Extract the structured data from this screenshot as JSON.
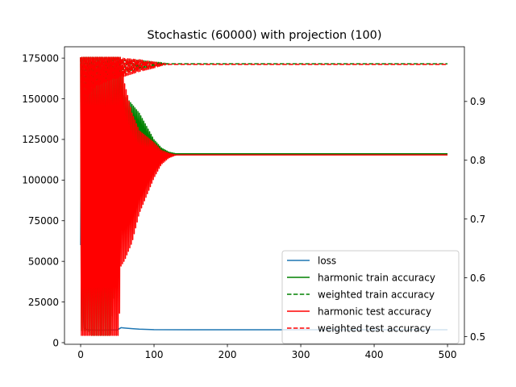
{
  "chart_data": {
    "type": "line",
    "title": "Stochastic (60000) with projection (100)",
    "xlabel": "",
    "ylabel_left": "",
    "ylabel_right": "",
    "xlim": [
      -22,
      523
    ],
    "ylim_left": [
      -1000,
      182000
    ],
    "ylim_right": [
      0.487,
      0.993
    ],
    "x_ticks": [
      0,
      100,
      200,
      300,
      400,
      500
    ],
    "y_left_ticks": [
      0,
      25000,
      50000,
      75000,
      100000,
      125000,
      150000,
      175000
    ],
    "y_right_ticks": [
      0.5,
      0.6,
      0.7,
      0.8,
      0.9
    ],
    "grid": false,
    "legend_position": "lower-right",
    "series": [
      {
        "name": "loss",
        "axis": "left",
        "color": "#1f77b4",
        "style": "solid",
        "x": [
          0,
          1,
          2,
          3,
          5,
          8,
          12,
          20,
          30,
          40,
          50,
          55,
          60,
          70,
          80,
          100,
          150,
          200,
          300,
          400,
          500
        ],
        "y": [
          60000,
          173000,
          120000,
          40000,
          9000,
          8000,
          7800,
          7700,
          7700,
          7800,
          7800,
          9200,
          9000,
          8600,
          8300,
          8000,
          7900,
          7900,
          7900,
          7900,
          7900
        ]
      },
      {
        "name": "harmonic train accuracy",
        "axis": "right",
        "color": "#008000",
        "style": "solid",
        "x": [
          0,
          10,
          20,
          40,
          60,
          80,
          100,
          110,
          120,
          130,
          200,
          300,
          400,
          500
        ],
        "y": [
          0.86,
          0.86,
          0.84,
          0.82,
          0.85,
          0.84,
          0.82,
          0.815,
          0.812,
          0.811,
          0.811,
          0.811,
          0.811,
          0.811
        ],
        "osc_amp": [
          0.35,
          0.35,
          0.35,
          0.33,
          0.06,
          0.04,
          0.015,
          0.006,
          0.002,
          0.0,
          0.0,
          0.0,
          0.0,
          0.0
        ]
      },
      {
        "name": "weighted train accuracy",
        "axis": "right",
        "color": "#008000",
        "style": "dashed",
        "x": [
          0,
          10,
          20,
          40,
          60,
          80,
          100,
          110,
          120,
          200,
          300,
          400,
          500
        ],
        "y": [
          0.95,
          0.955,
          0.955,
          0.957,
          0.96,
          0.962,
          0.963,
          0.964,
          0.964,
          0.964,
          0.964,
          0.964,
          0.964
        ],
        "osc_amp": [
          0.03,
          0.03,
          0.025,
          0.02,
          0.012,
          0.008,
          0.004,
          0.002,
          0.0,
          0.0,
          0.0,
          0.0,
          0.0
        ]
      },
      {
        "name": "harmonic test accuracy",
        "axis": "right",
        "color": "#ff0000",
        "style": "solid",
        "x": [
          0,
          10,
          20,
          40,
          50,
          55,
          60,
          70,
          80,
          100,
          110,
          120,
          130,
          200,
          300,
          400,
          500
        ],
        "y": [
          0.7,
          0.7,
          0.7,
          0.7,
          0.72,
          0.8,
          0.78,
          0.77,
          0.78,
          0.8,
          0.805,
          0.808,
          0.809,
          0.809,
          0.809,
          0.809,
          0.809
        ],
        "osc_amp": [
          0.45,
          0.45,
          0.45,
          0.45,
          0.3,
          0.18,
          0.15,
          0.11,
          0.07,
          0.03,
          0.012,
          0.004,
          0.0,
          0.0,
          0.0,
          0.0,
          0.0
        ]
      },
      {
        "name": "weighted test accuracy",
        "axis": "right",
        "color": "#ff0000",
        "style": "dashed",
        "x": [
          0,
          10,
          20,
          40,
          60,
          80,
          100,
          110,
          120,
          200,
          300,
          400,
          500
        ],
        "y": [
          0.94,
          0.95,
          0.955,
          0.957,
          0.958,
          0.961,
          0.962,
          0.963,
          0.963,
          0.963,
          0.963,
          0.963,
          0.963
        ],
        "osc_amp": [
          0.05,
          0.04,
          0.03,
          0.02,
          0.015,
          0.01,
          0.005,
          0.002,
          0.0,
          0.0,
          0.0,
          0.0,
          0.0
        ]
      }
    ]
  }
}
